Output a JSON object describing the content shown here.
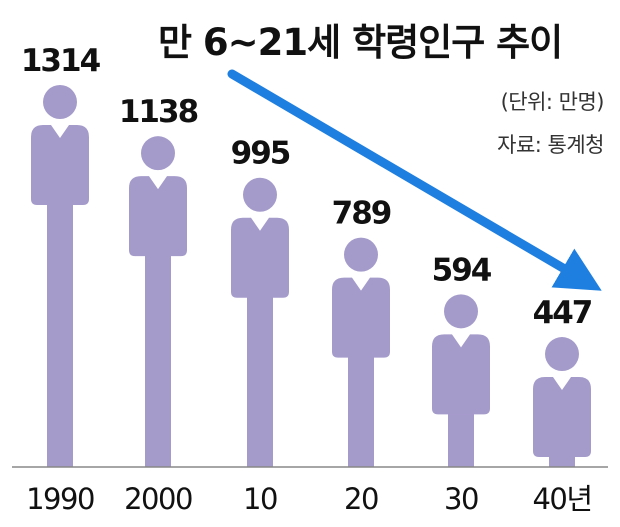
{
  "title": "만 6~21세 학령인구 추이",
  "unit_note": "(단위: 만명)",
  "source_note": "자료: 통계청",
  "colors": {
    "figure": "#a59bcb",
    "arrow": "#1e7fe0",
    "baseline": "#888888",
    "text": "#111111"
  },
  "chart_data": {
    "type": "bar",
    "title": "만 6~21세 학령인구 추이",
    "categories": [
      "1990",
      "2000",
      "10",
      "20",
      "30",
      "40년"
    ],
    "values": [
      1314,
      1138,
      995,
      789,
      594,
      447
    ],
    "ylim": [
      0,
      1314
    ],
    "grid": false,
    "trend_arrow": "down"
  }
}
